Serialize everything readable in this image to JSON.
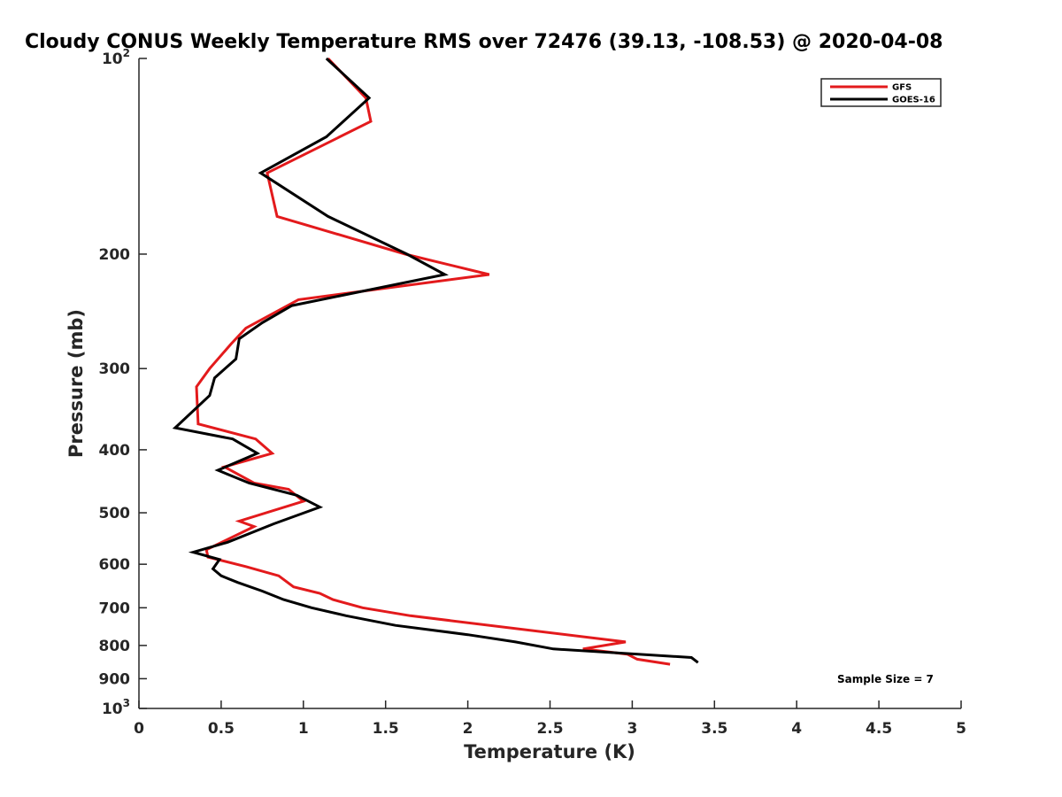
{
  "chart_data": {
    "type": "line",
    "title": "Cloudy CONUS Weekly Temperature RMS over 72476 (39.13, -108.53) @ 2020-04-08",
    "xlabel": "Temperature (K)",
    "ylabel": "Pressure (mb)",
    "xlim": [
      0,
      5
    ],
    "ylim": [
      100,
      1000
    ],
    "yscale": "log",
    "y_reversed": true,
    "grid": false,
    "legend_position": "top-right",
    "x_ticks": [
      {
        "value": 0,
        "label": "0"
      },
      {
        "value": 0.5,
        "label": "0.5"
      },
      {
        "value": 1,
        "label": "1"
      },
      {
        "value": 1.5,
        "label": "1.5"
      },
      {
        "value": 2,
        "label": "2"
      },
      {
        "value": 2.5,
        "label": "2.5"
      },
      {
        "value": 3,
        "label": "3"
      },
      {
        "value": 3.5,
        "label": "3.5"
      },
      {
        "value": 4,
        "label": "4"
      },
      {
        "value": 4.5,
        "label": "4.5"
      },
      {
        "value": 5,
        "label": "5"
      }
    ],
    "y_ticks": [
      {
        "value": 100,
        "base": "10",
        "exp": "2"
      },
      {
        "value": 200,
        "base": "200",
        "exp": ""
      },
      {
        "value": 300,
        "base": "300",
        "exp": ""
      },
      {
        "value": 400,
        "base": "400",
        "exp": ""
      },
      {
        "value": 500,
        "base": "500",
        "exp": ""
      },
      {
        "value": 600,
        "base": "600",
        "exp": ""
      },
      {
        "value": 700,
        "base": "700",
        "exp": ""
      },
      {
        "value": 800,
        "base": "800",
        "exp": ""
      },
      {
        "value": 900,
        "base": "900",
        "exp": ""
      },
      {
        "value": 1000,
        "base": "10",
        "exp": "3"
      }
    ],
    "series": [
      {
        "name": "GFS",
        "color": "#e31a1c",
        "points": [
          [
            1.15,
            100
          ],
          [
            1.38,
            115
          ],
          [
            1.41,
            125
          ],
          [
            0.78,
            150
          ],
          [
            0.84,
            175
          ],
          [
            1.62,
            200
          ],
          [
            2.13,
            215
          ],
          [
            0.97,
            235
          ],
          [
            0.65,
            260
          ],
          [
            0.56,
            275
          ],
          [
            0.43,
            300
          ],
          [
            0.35,
            320
          ],
          [
            0.36,
            365
          ],
          [
            0.71,
            385
          ],
          [
            0.81,
            405
          ],
          [
            0.52,
            425
          ],
          [
            0.7,
            450
          ],
          [
            0.91,
            460
          ],
          [
            1.0,
            480
          ],
          [
            0.61,
            515
          ],
          [
            0.7,
            525
          ],
          [
            0.41,
            570
          ],
          [
            0.42,
            585
          ],
          [
            0.65,
            605
          ],
          [
            0.85,
            625
          ],
          [
            0.94,
            650
          ],
          [
            1.1,
            665
          ],
          [
            1.18,
            680
          ],
          [
            1.36,
            700
          ],
          [
            1.65,
            720
          ],
          [
            2.96,
            790
          ],
          [
            2.7,
            810
          ],
          [
            2.97,
            825
          ],
          [
            3.03,
            840
          ],
          [
            3.23,
            855
          ]
        ]
      },
      {
        "name": "GOES-16",
        "color": "#000000",
        "points": [
          [
            1.14,
            100
          ],
          [
            1.4,
            115
          ],
          [
            1.14,
            132
          ],
          [
            0.74,
            150
          ],
          [
            1.15,
            175
          ],
          [
            1.63,
            200
          ],
          [
            1.86,
            215
          ],
          [
            0.93,
            240
          ],
          [
            0.75,
            255
          ],
          [
            0.61,
            270
          ],
          [
            0.59,
            290
          ],
          [
            0.46,
            310
          ],
          [
            0.43,
            330
          ],
          [
            0.22,
            370
          ],
          [
            0.57,
            385
          ],
          [
            0.72,
            405
          ],
          [
            0.48,
            430
          ],
          [
            0.67,
            450
          ],
          [
            0.96,
            470
          ],
          [
            1.1,
            490
          ],
          [
            0.82,
            520
          ],
          [
            0.54,
            555
          ],
          [
            0.33,
            575
          ],
          [
            0.49,
            590
          ],
          [
            0.45,
            610
          ],
          [
            0.5,
            625
          ],
          [
            0.6,
            640
          ],
          [
            0.75,
            660
          ],
          [
            0.88,
            680
          ],
          [
            1.05,
            700
          ],
          [
            1.26,
            720
          ],
          [
            1.56,
            745
          ],
          [
            2.0,
            770
          ],
          [
            2.29,
            790
          ],
          [
            2.52,
            810
          ],
          [
            3.36,
            835
          ],
          [
            3.4,
            850
          ]
        ]
      }
    ],
    "annotations": [
      {
        "text": "Sample Size = 7"
      }
    ]
  }
}
